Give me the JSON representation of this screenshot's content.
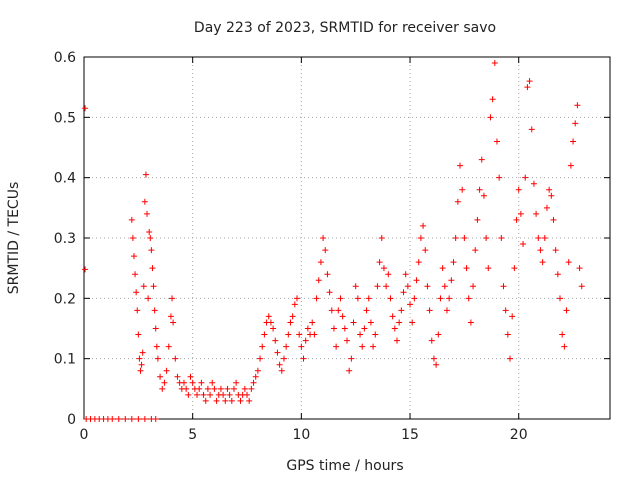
{
  "chart_data": {
    "type": "scatter",
    "title": "Day 223 of 2023, SRMTID for receiver savo",
    "xlabel": "GPS time / hours",
    "ylabel": "SRMTID / TECUs",
    "xlim": [
      0,
      24.2
    ],
    "ylim": [
      0,
      0.6
    ],
    "xticks": [
      0,
      5,
      10,
      15,
      20
    ],
    "yticks": [
      0,
      0.1,
      0.2,
      0.3,
      0.4,
      0.5,
      0.6
    ],
    "xtick_labels": [
      "0",
      "5",
      "10",
      "15",
      "20"
    ],
    "ytick_labels": [
      "0",
      "0.1",
      "0.2",
      "0.3",
      "0.4",
      "0.5",
      "0.6"
    ],
    "grid": true,
    "marker": "+",
    "marker_color": "#ff0000",
    "series": [
      {
        "name": "SRMTID",
        "points": [
          [
            0.05,
            0.515
          ],
          [
            0.05,
            0.248
          ],
          [
            0.1,
            0.0
          ],
          [
            0.3,
            0.0
          ],
          [
            0.5,
            0.0
          ],
          [
            0.7,
            0.0
          ],
          [
            0.9,
            0.0
          ],
          [
            1.1,
            0.0
          ],
          [
            1.3,
            0.0
          ],
          [
            1.6,
            0.0
          ],
          [
            1.9,
            0.0
          ],
          [
            2.2,
            0.0
          ],
          [
            2.5,
            0.0
          ],
          [
            2.8,
            0.0
          ],
          [
            3.1,
            0.0
          ],
          [
            3.3,
            0.0
          ],
          [
            2.2,
            0.33
          ],
          [
            2.25,
            0.3
          ],
          [
            2.3,
            0.27
          ],
          [
            2.35,
            0.24
          ],
          [
            2.4,
            0.21
          ],
          [
            2.45,
            0.18
          ],
          [
            2.5,
            0.14
          ],
          [
            2.55,
            0.1
          ],
          [
            2.6,
            0.08
          ],
          [
            2.65,
            0.09
          ],
          [
            2.7,
            0.11
          ],
          [
            2.75,
            0.22
          ],
          [
            2.8,
            0.36
          ],
          [
            2.85,
            0.405
          ],
          [
            2.9,
            0.34
          ],
          [
            2.95,
            0.2
          ],
          [
            3.0,
            0.31
          ],
          [
            3.05,
            0.3
          ],
          [
            3.1,
            0.28
          ],
          [
            3.15,
            0.25
          ],
          [
            3.2,
            0.22
          ],
          [
            3.25,
            0.18
          ],
          [
            3.3,
            0.15
          ],
          [
            3.35,
            0.12
          ],
          [
            3.4,
            0.1
          ],
          [
            3.5,
            0.07
          ],
          [
            3.6,
            0.05
          ],
          [
            3.7,
            0.06
          ],
          [
            3.8,
            0.08
          ],
          [
            3.9,
            0.12
          ],
          [
            4.0,
            0.17
          ],
          [
            4.05,
            0.2
          ],
          [
            4.1,
            0.16
          ],
          [
            4.2,
            0.1
          ],
          [
            4.3,
            0.07
          ],
          [
            4.4,
            0.06
          ],
          [
            4.5,
            0.05
          ],
          [
            4.6,
            0.06
          ],
          [
            4.7,
            0.05
          ],
          [
            4.8,
            0.04
          ],
          [
            4.9,
            0.07
          ],
          [
            5.0,
            0.06
          ],
          [
            5.1,
            0.05
          ],
          [
            5.2,
            0.04
          ],
          [
            5.3,
            0.05
          ],
          [
            5.4,
            0.06
          ],
          [
            5.5,
            0.04
          ],
          [
            5.6,
            0.03
          ],
          [
            5.7,
            0.05
          ],
          [
            5.8,
            0.04
          ],
          [
            5.9,
            0.06
          ],
          [
            6.0,
            0.05
          ],
          [
            6.1,
            0.03
          ],
          [
            6.2,
            0.04
          ],
          [
            6.3,
            0.05
          ],
          [
            6.4,
            0.04
          ],
          [
            6.5,
            0.03
          ],
          [
            6.6,
            0.05
          ],
          [
            6.7,
            0.04
          ],
          [
            6.8,
            0.03
          ],
          [
            6.9,
            0.05
          ],
          [
            7.0,
            0.06
          ],
          [
            7.1,
            0.04
          ],
          [
            7.2,
            0.03
          ],
          [
            7.3,
            0.04
          ],
          [
            7.4,
            0.05
          ],
          [
            7.5,
            0.04
          ],
          [
            7.6,
            0.03
          ],
          [
            7.7,
            0.05
          ],
          [
            7.8,
            0.06
          ],
          [
            7.9,
            0.07
          ],
          [
            8.0,
            0.08
          ],
          [
            8.1,
            0.1
          ],
          [
            8.2,
            0.12
          ],
          [
            8.3,
            0.14
          ],
          [
            8.4,
            0.16
          ],
          [
            8.5,
            0.17
          ],
          [
            8.6,
            0.16
          ],
          [
            8.7,
            0.15
          ],
          [
            8.8,
            0.13
          ],
          [
            8.9,
            0.11
          ],
          [
            9.0,
            0.09
          ],
          [
            9.1,
            0.08
          ],
          [
            9.2,
            0.1
          ],
          [
            9.3,
            0.12
          ],
          [
            9.4,
            0.14
          ],
          [
            9.5,
            0.16
          ],
          [
            9.6,
            0.17
          ],
          [
            9.7,
            0.19
          ],
          [
            9.8,
            0.2
          ],
          [
            9.9,
            0.14
          ],
          [
            10.0,
            0.12
          ],
          [
            10.1,
            0.1
          ],
          [
            10.2,
            0.13
          ],
          [
            10.3,
            0.15
          ],
          [
            10.4,
            0.14
          ],
          [
            10.5,
            0.16
          ],
          [
            10.6,
            0.14
          ],
          [
            10.7,
            0.2
          ],
          [
            10.8,
            0.23
          ],
          [
            10.9,
            0.26
          ],
          [
            11.0,
            0.3
          ],
          [
            11.1,
            0.28
          ],
          [
            11.2,
            0.24
          ],
          [
            11.3,
            0.21
          ],
          [
            11.4,
            0.18
          ],
          [
            11.5,
            0.15
          ],
          [
            11.6,
            0.12
          ],
          [
            11.7,
            0.18
          ],
          [
            11.8,
            0.2
          ],
          [
            11.9,
            0.17
          ],
          [
            12.0,
            0.15
          ],
          [
            12.1,
            0.13
          ],
          [
            12.2,
            0.08
          ],
          [
            12.3,
            0.1
          ],
          [
            12.4,
            0.16
          ],
          [
            12.5,
            0.22
          ],
          [
            12.6,
            0.2
          ],
          [
            12.7,
            0.14
          ],
          [
            12.8,
            0.12
          ],
          [
            12.9,
            0.15
          ],
          [
            13.0,
            0.18
          ],
          [
            13.1,
            0.2
          ],
          [
            13.2,
            0.16
          ],
          [
            13.3,
            0.12
          ],
          [
            13.4,
            0.14
          ],
          [
            13.5,
            0.22
          ],
          [
            13.6,
            0.26
          ],
          [
            13.7,
            0.3
          ],
          [
            13.8,
            0.25
          ],
          [
            13.9,
            0.22
          ],
          [
            14.0,
            0.24
          ],
          [
            14.1,
            0.2
          ],
          [
            14.2,
            0.17
          ],
          [
            14.3,
            0.15
          ],
          [
            14.4,
            0.13
          ],
          [
            14.5,
            0.16
          ],
          [
            14.6,
            0.18
          ],
          [
            14.7,
            0.21
          ],
          [
            14.8,
            0.24
          ],
          [
            14.9,
            0.22
          ],
          [
            15.0,
            0.19
          ],
          [
            15.1,
            0.16
          ],
          [
            15.2,
            0.2
          ],
          [
            15.3,
            0.23
          ],
          [
            15.4,
            0.26
          ],
          [
            15.5,
            0.3
          ],
          [
            15.6,
            0.32
          ],
          [
            15.7,
            0.28
          ],
          [
            15.8,
            0.22
          ],
          [
            15.9,
            0.18
          ],
          [
            16.0,
            0.13
          ],
          [
            16.1,
            0.1
          ],
          [
            16.2,
            0.09
          ],
          [
            16.3,
            0.14
          ],
          [
            16.4,
            0.2
          ],
          [
            16.5,
            0.25
          ],
          [
            16.6,
            0.22
          ],
          [
            16.7,
            0.18
          ],
          [
            16.8,
            0.2
          ],
          [
            16.9,
            0.23
          ],
          [
            17.0,
            0.26
          ],
          [
            17.1,
            0.3
          ],
          [
            17.2,
            0.36
          ],
          [
            17.3,
            0.42
          ],
          [
            17.4,
            0.38
          ],
          [
            17.5,
            0.3
          ],
          [
            17.6,
            0.25
          ],
          [
            17.7,
            0.2
          ],
          [
            17.8,
            0.16
          ],
          [
            17.9,
            0.22
          ],
          [
            18.0,
            0.28
          ],
          [
            18.1,
            0.33
          ],
          [
            18.2,
            0.38
          ],
          [
            18.3,
            0.43
          ],
          [
            18.4,
            0.37
          ],
          [
            18.5,
            0.3
          ],
          [
            18.6,
            0.25
          ],
          [
            18.7,
            0.5
          ],
          [
            18.8,
            0.53
          ],
          [
            18.9,
            0.59
          ],
          [
            19.0,
            0.46
          ],
          [
            19.1,
            0.4
          ],
          [
            19.2,
            0.3
          ],
          [
            19.3,
            0.22
          ],
          [
            19.4,
            0.18
          ],
          [
            19.5,
            0.14
          ],
          [
            19.6,
            0.1
          ],
          [
            19.7,
            0.17
          ],
          [
            19.8,
            0.25
          ],
          [
            19.9,
            0.33
          ],
          [
            20.0,
            0.38
          ],
          [
            20.1,
            0.34
          ],
          [
            20.2,
            0.29
          ],
          [
            20.3,
            0.4
          ],
          [
            20.4,
            0.55
          ],
          [
            20.5,
            0.56
          ],
          [
            20.6,
            0.48
          ],
          [
            20.7,
            0.39
          ],
          [
            20.8,
            0.34
          ],
          [
            20.9,
            0.3
          ],
          [
            21.0,
            0.28
          ],
          [
            21.1,
            0.26
          ],
          [
            21.2,
            0.3
          ],
          [
            21.3,
            0.35
          ],
          [
            21.4,
            0.38
          ],
          [
            21.5,
            0.37
          ],
          [
            21.6,
            0.33
          ],
          [
            21.7,
            0.28
          ],
          [
            21.8,
            0.24
          ],
          [
            21.9,
            0.2
          ],
          [
            22.0,
            0.14
          ],
          [
            22.1,
            0.12
          ],
          [
            22.2,
            0.18
          ],
          [
            22.3,
            0.26
          ],
          [
            22.4,
            0.42
          ],
          [
            22.5,
            0.46
          ],
          [
            22.6,
            0.49
          ],
          [
            22.7,
            0.52
          ],
          [
            22.8,
            0.25
          ],
          [
            22.9,
            0.22
          ]
        ]
      }
    ]
  }
}
